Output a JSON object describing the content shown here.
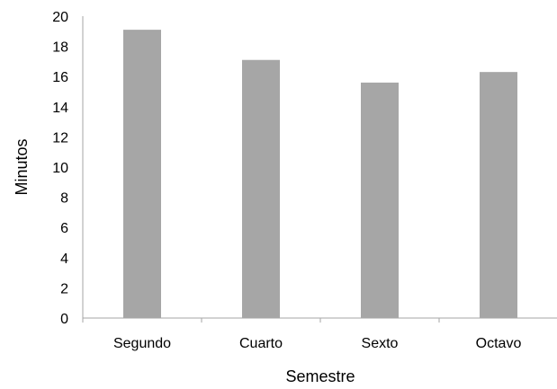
{
  "chart_data": {
    "type": "bar",
    "categories": [
      "Segundo",
      "Cuarto",
      "Sexto",
      "Octavo"
    ],
    "values": [
      19.1,
      17.1,
      15.6,
      16.3
    ],
    "xlabel": "Semestre",
    "ylabel": "Minutos",
    "ylim": [
      0,
      20
    ],
    "yticks": [
      "0",
      "2",
      "4",
      "6",
      "8",
      "10",
      "12",
      "14",
      "16",
      "18",
      "20"
    ],
    "grid": false,
    "legend": "none",
    "bar_color": "#a6a6a6",
    "axis_color": "#a6a6a6"
  }
}
